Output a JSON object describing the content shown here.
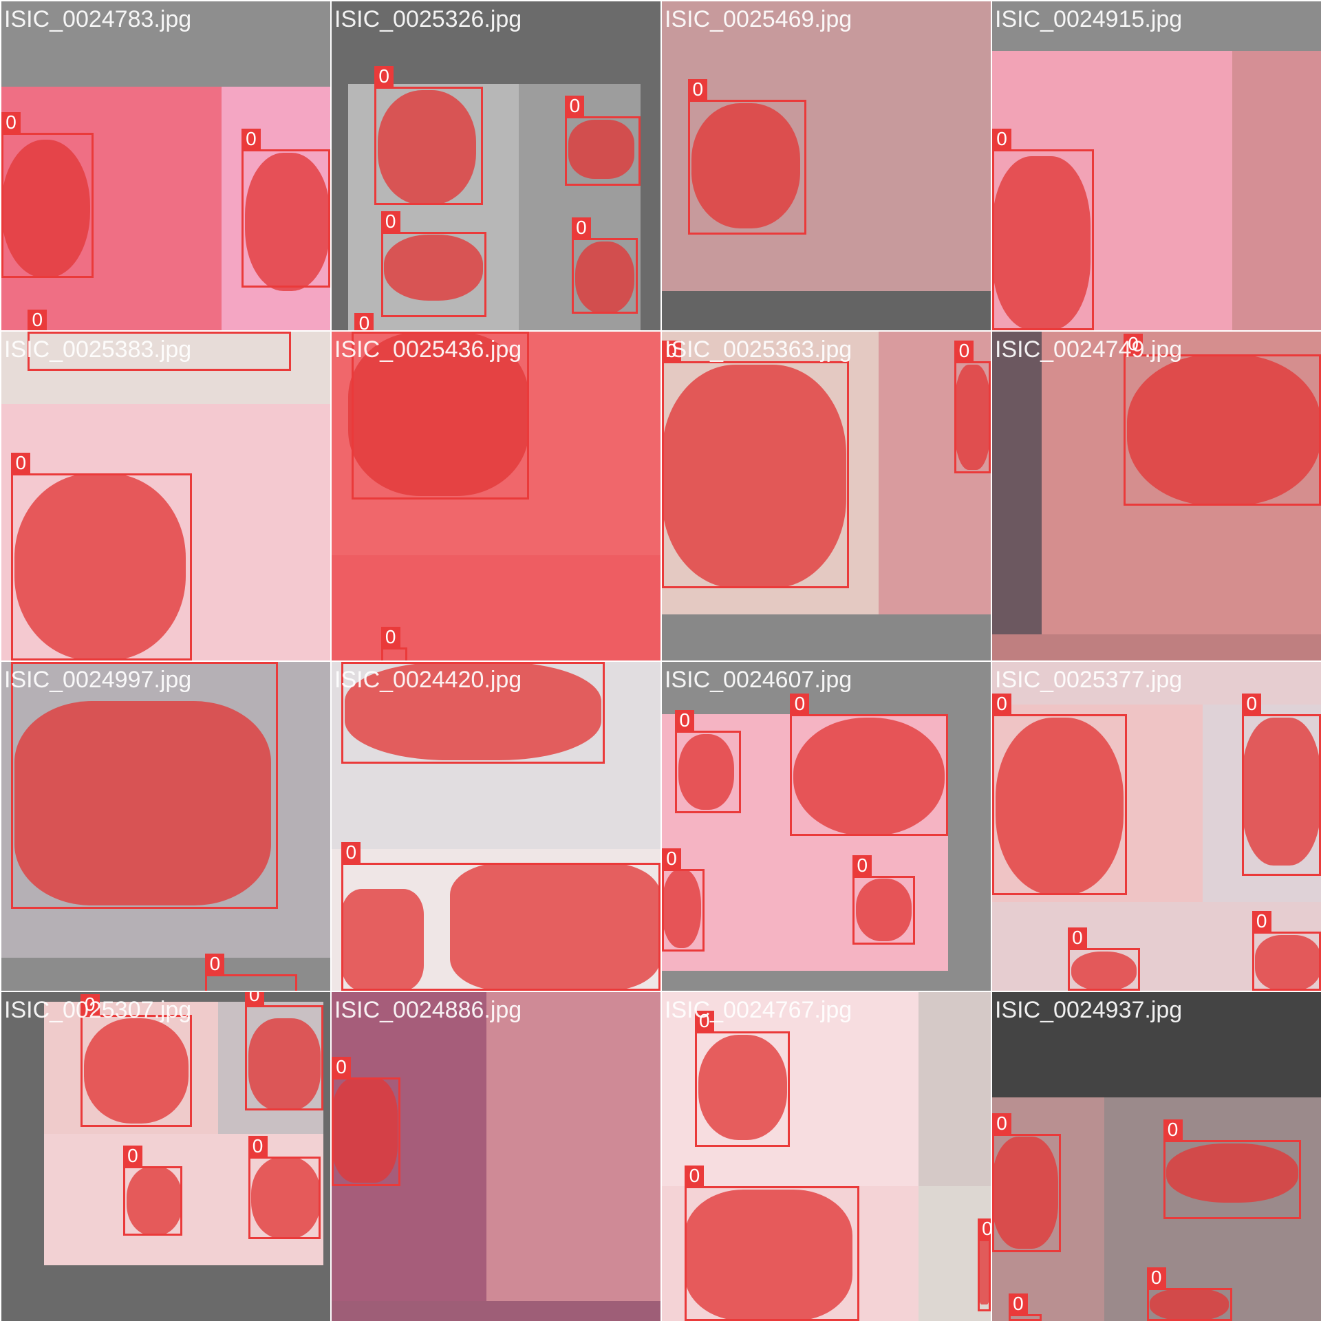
{
  "label_color": "#ea3a3a",
  "cells": [
    {
      "file_name": "ISIC_0024783.jpg",
      "background": "#8e8e8e",
      "regions": [
        {
          "l": 0,
          "t": 26,
          "w": 67,
          "h": 74,
          "c": "#ef6f84"
        },
        {
          "l": 67,
          "t": 26,
          "w": 33,
          "h": 74,
          "c": "#f4a6c3"
        }
      ],
      "lesions": [
        {
          "l": 0,
          "t": 42,
          "w": 27,
          "h": 42,
          "r": "48%"
        },
        {
          "l": 74,
          "t": 46,
          "w": 26,
          "h": 42,
          "r": "45%"
        }
      ],
      "detections": [
        {
          "l": 0,
          "t": 40,
          "w": 28,
          "h": 44,
          "class_id": "0"
        },
        {
          "l": 73,
          "t": 45,
          "w": 27,
          "h": 42,
          "class_id": "0"
        },
        {
          "l": 8,
          "t": 100,
          "w": 80,
          "h": 12,
          "class_id": "0"
        }
      ]
    },
    {
      "file_name": "ISIC_0025326.jpg",
      "background": "#6b6b6b",
      "regions": [
        {
          "l": 5,
          "t": 25,
          "w": 52,
          "h": 75,
          "c": "#b7b7b7"
        },
        {
          "l": 57,
          "t": 25,
          "w": 37,
          "h": 75,
          "c": "#9d9d9d"
        }
      ],
      "lesions": [
        {
          "l": 14,
          "t": 27,
          "w": 30,
          "h": 35,
          "r": "45%"
        },
        {
          "l": 72,
          "t": 36,
          "w": 20,
          "h": 18,
          "r": "40%"
        },
        {
          "l": 16,
          "t": 71,
          "w": 30,
          "h": 20,
          "r": "45%"
        },
        {
          "l": 74,
          "t": 73,
          "w": 18,
          "h": 22,
          "r": "45%"
        }
      ],
      "detections": [
        {
          "l": 13,
          "t": 26,
          "w": 33,
          "h": 36,
          "class_id": "0"
        },
        {
          "l": 71,
          "t": 35,
          "w": 23,
          "h": 21,
          "class_id": "0"
        },
        {
          "l": 15,
          "t": 70,
          "w": 32,
          "h": 26,
          "class_id": "0"
        },
        {
          "l": 73,
          "t": 72,
          "w": 20,
          "h": 23,
          "class_id": "0"
        },
        {
          "l": 7,
          "t": 101,
          "w": 30,
          "h": 6,
          "class_id": "0"
        }
      ]
    },
    {
      "file_name": "ISIC_0025469.jpg",
      "background": "#646464",
      "regions": [
        {
          "l": 0,
          "t": 0,
          "w": 100,
          "h": 88,
          "c": "#c79a9c"
        }
      ],
      "lesions": [
        {
          "l": 9,
          "t": 31,
          "w": 33,
          "h": 38,
          "r": "45%"
        }
      ],
      "detections": [
        {
          "l": 8,
          "t": 30,
          "w": 36,
          "h": 41,
          "class_id": "0"
        }
      ]
    },
    {
      "file_name": "ISIC_0024915.jpg",
      "background": "#8c8c8c",
      "regions": [
        {
          "l": 0,
          "t": 15,
          "w": 73,
          "h": 85,
          "c": "#f2a3b6"
        },
        {
          "l": 73,
          "t": 15,
          "w": 27,
          "h": 85,
          "c": "#d58f95"
        }
      ],
      "lesions": [
        {
          "l": 0,
          "t": 47,
          "w": 30,
          "h": 53,
          "r": "40%"
        }
      ],
      "detections": [
        {
          "l": 0,
          "t": 45,
          "w": 31,
          "h": 55,
          "class_id": "0"
        }
      ]
    },
    {
      "file_name": "ISIC_0025383.jpg",
      "background": "#e4cfd2",
      "regions": [
        {
          "l": 0,
          "t": 0,
          "w": 100,
          "h": 22,
          "c": "#e7dcd8"
        },
        {
          "l": 0,
          "t": 22,
          "w": 100,
          "h": 78,
          "c": "#f4c9d0"
        }
      ],
      "lesions": [
        {
          "l": 4,
          "t": 43,
          "w": 52,
          "h": 57,
          "r": "45%"
        }
      ],
      "detections": [
        {
          "l": 8,
          "t": 0,
          "w": 80,
          "h": 12,
          "class_id": "0"
        },
        {
          "l": 3,
          "t": 43,
          "w": 55,
          "h": 57,
          "class_id": "0"
        }
      ]
    },
    {
      "file_name": "ISIC_0025436.jpg",
      "background": "#ed5a5a",
      "regions": [
        {
          "l": 0,
          "t": 0,
          "w": 100,
          "h": 68,
          "c": "#f0676b"
        },
        {
          "l": 0,
          "t": 68,
          "w": 100,
          "h": 32,
          "c": "#ee5d62"
        }
      ],
      "lesions": [
        {
          "l": 5,
          "t": 0,
          "w": 55,
          "h": 50,
          "r": "40%"
        }
      ],
      "detections": [
        {
          "l": 6,
          "t": 0,
          "w": 54,
          "h": 51,
          "class_id": "0"
        },
        {
          "l": 15,
          "t": 96,
          "w": 8,
          "h": 6,
          "class_id": "0"
        }
      ]
    },
    {
      "file_name": "ISIC_0025363.jpg",
      "background": "#888888",
      "regions": [
        {
          "l": 0,
          "t": 0,
          "w": 66,
          "h": 86,
          "c": "#e4c9c2"
        },
        {
          "l": 66,
          "t": 0,
          "w": 34,
          "h": 86,
          "c": "#d99b9e"
        }
      ],
      "lesions": [
        {
          "l": 0,
          "t": 10,
          "w": 56,
          "h": 68,
          "r": "40%"
        },
        {
          "l": 89,
          "t": 10,
          "w": 11,
          "h": 32,
          "r": "40%"
        }
      ],
      "detections": [
        {
          "l": 0,
          "t": 9,
          "w": 57,
          "h": 69,
          "class_id": "0"
        },
        {
          "l": 89,
          "t": 9,
          "w": 11,
          "h": 34,
          "class_id": "0"
        }
      ]
    },
    {
      "file_name": "ISIC_0024749.jpg",
      "background": "#bf7f80",
      "regions": [
        {
          "l": 0,
          "t": 0,
          "w": 15,
          "h": 92,
          "c": "#6c5860"
        },
        {
          "l": 15,
          "t": 0,
          "w": 85,
          "h": 92,
          "c": "#d58e8e"
        }
      ],
      "lesions": [
        {
          "l": 41,
          "t": 7,
          "w": 59,
          "h": 46,
          "r": "45%"
        }
      ],
      "detections": [
        {
          "l": 40,
          "t": 7,
          "w": 60,
          "h": 46,
          "class_id": "0"
        }
      ]
    },
    {
      "file_name": "ISIC_0024997.jpg",
      "background": "#8c8c8c",
      "regions": [
        {
          "l": 0,
          "t": 0,
          "w": 100,
          "h": 90,
          "c": "#b5b0b5"
        }
      ],
      "lesions": [
        {
          "l": 4,
          "t": 12,
          "w": 78,
          "h": 62,
          "r": "30%"
        }
      ],
      "detections": [
        {
          "l": 3,
          "t": 0,
          "w": 81,
          "h": 75,
          "class_id": "0"
        },
        {
          "l": 62,
          "t": 95,
          "w": 28,
          "h": 6,
          "class_id": "0"
        }
      ]
    },
    {
      "file_name": "ISIC_0024420.jpg",
      "background": "#ddd9db",
      "regions": [
        {
          "l": 0,
          "t": 0,
          "w": 100,
          "h": 57,
          "c": "#e1dde0"
        },
        {
          "l": 0,
          "t": 57,
          "w": 100,
          "h": 43,
          "c": "#efe6e6"
        }
      ],
      "lesions": [
        {
          "l": 4,
          "t": 0,
          "w": 78,
          "h": 30,
          "r": "40%"
        },
        {
          "l": 3,
          "t": 69,
          "w": 25,
          "h": 31,
          "r": "25%"
        },
        {
          "l": 36,
          "t": 61,
          "w": 64,
          "h": 39,
          "r": "25%"
        }
      ],
      "detections": [
        {
          "l": 3,
          "t": 0,
          "w": 80,
          "h": 31,
          "class_id": "0"
        },
        {
          "l": 3,
          "t": 61,
          "w": 97,
          "h": 39,
          "class_id": "0"
        }
      ]
    },
    {
      "file_name": "ISIC_0024607.jpg",
      "background": "#8c8c8c",
      "regions": [
        {
          "l": 0,
          "t": 16,
          "w": 87,
          "h": 78,
          "c": "#f5b4c3"
        }
      ],
      "lesions": [
        {
          "l": 5,
          "t": 22,
          "w": 17,
          "h": 23,
          "r": "45%"
        },
        {
          "l": 40,
          "t": 17,
          "w": 46,
          "h": 36,
          "r": "48%"
        },
        {
          "l": 0,
          "t": 63,
          "w": 12,
          "h": 24,
          "r": "45%"
        },
        {
          "l": 59,
          "t": 66,
          "w": 17,
          "h": 19,
          "r": "45%"
        }
      ],
      "detections": [
        {
          "l": 4,
          "t": 21,
          "w": 20,
          "h": 25,
          "class_id": "0"
        },
        {
          "l": 39,
          "t": 16,
          "w": 48,
          "h": 37,
          "class_id": "0"
        },
        {
          "l": 0,
          "t": 63,
          "w": 13,
          "h": 25,
          "class_id": "0"
        },
        {
          "l": 58,
          "t": 65,
          "w": 19,
          "h": 21,
          "class_id": "0"
        }
      ]
    },
    {
      "file_name": "ISIC_0025377.jpg",
      "background": "#e6cdd0",
      "regions": [
        {
          "l": 0,
          "t": 13,
          "w": 64,
          "h": 60,
          "c": "#efc4c5"
        },
        {
          "l": 64,
          "t": 13,
          "w": 36,
          "h": 60,
          "c": "#dfd2d7"
        }
      ],
      "lesions": [
        {
          "l": 1,
          "t": 17,
          "w": 39,
          "h": 54,
          "r": "45%"
        },
        {
          "l": 76,
          "t": 17,
          "w": 24,
          "h": 45,
          "r": "40%"
        },
        {
          "l": 24,
          "t": 88,
          "w": 20,
          "h": 12,
          "r": "45%"
        },
        {
          "l": 80,
          "t": 83,
          "w": 20,
          "h": 17,
          "r": "40%"
        }
      ],
      "detections": [
        {
          "l": 0,
          "t": 16,
          "w": 41,
          "h": 55,
          "class_id": "0"
        },
        {
          "l": 76,
          "t": 16,
          "w": 24,
          "h": 49,
          "class_id": "0"
        },
        {
          "l": 23,
          "t": 87,
          "w": 22,
          "h": 13,
          "class_id": "0"
        },
        {
          "l": 79,
          "t": 82,
          "w": 21,
          "h": 18,
          "class_id": "0"
        }
      ]
    },
    {
      "file_name": "ISIC_0025307.jpg",
      "background": "#6a6a6a",
      "regions": [
        {
          "l": 13,
          "t": 3,
          "w": 53,
          "h": 40,
          "c": "#efcbcb"
        },
        {
          "l": 66,
          "t": 3,
          "w": 32,
          "h": 40,
          "c": "#c9c0c3"
        },
        {
          "l": 13,
          "t": 43,
          "w": 85,
          "h": 40,
          "c": "#f2d1d3"
        }
      ],
      "lesions": [
        {
          "l": 25,
          "t": 8,
          "w": 32,
          "h": 32,
          "r": "45%"
        },
        {
          "l": 75,
          "t": 8,
          "w": 22,
          "h": 28,
          "r": "40%"
        },
        {
          "l": 38,
          "t": 53,
          "w": 17,
          "h": 21,
          "r": "45%"
        },
        {
          "l": 76,
          "t": 50,
          "w": 21,
          "h": 25,
          "r": "45%"
        }
      ],
      "detections": [
        {
          "l": 24,
          "t": 7,
          "w": 34,
          "h": 34,
          "class_id": "0"
        },
        {
          "l": 74,
          "t": 4,
          "w": 24,
          "h": 32,
          "class_id": "0"
        },
        {
          "l": 37,
          "t": 53,
          "w": 18,
          "h": 21,
          "class_id": "0"
        },
        {
          "l": 75,
          "t": 50,
          "w": 22,
          "h": 25,
          "class_id": "0"
        }
      ]
    },
    {
      "file_name": "ISIC_0024886.jpg",
      "background": "#9e5e77",
      "regions": [
        {
          "l": 0,
          "t": 0,
          "w": 47,
          "h": 94,
          "c": "#a65d7a"
        },
        {
          "l": 47,
          "t": 0,
          "w": 53,
          "h": 94,
          "c": "#cf8a96"
        }
      ],
      "lesions": [
        {
          "l": 0,
          "t": 26,
          "w": 20,
          "h": 32,
          "r": "35%"
        }
      ],
      "detections": [
        {
          "l": 0,
          "t": 26,
          "w": 21,
          "h": 33,
          "class_id": "0"
        }
      ]
    },
    {
      "file_name": "ISIC_0024767.jpg",
      "background": "#f2dadd",
      "regions": [
        {
          "l": 0,
          "t": 0,
          "w": 78,
          "h": 59,
          "c": "#f7dde0"
        },
        {
          "l": 78,
          "t": 0,
          "w": 22,
          "h": 59,
          "c": "#d5c9c7"
        },
        {
          "l": 0,
          "t": 59,
          "w": 78,
          "h": 41,
          "c": "#f4d3d6"
        },
        {
          "l": 78,
          "t": 59,
          "w": 22,
          "h": 41,
          "c": "#ddd7d2"
        }
      ],
      "lesions": [
        {
          "l": 11,
          "t": 13,
          "w": 27,
          "h": 32,
          "r": "45%"
        },
        {
          "l": 7,
          "t": 60,
          "w": 51,
          "h": 40,
          "r": "35%"
        },
        {
          "l": 96,
          "t": 75,
          "w": 4,
          "h": 20,
          "r": "30%"
        }
      ],
      "detections": [
        {
          "l": 10,
          "t": 12,
          "w": 29,
          "h": 35,
          "class_id": "0"
        },
        {
          "l": 7,
          "t": 59,
          "w": 53,
          "h": 41,
          "class_id": "0"
        },
        {
          "l": 96,
          "t": 75,
          "w": 4,
          "h": 22,
          "class_id": "0"
        }
      ]
    },
    {
      "file_name": "ISIC_0024937.jpg",
      "background": "#444444",
      "regions": [
        {
          "l": 0,
          "t": 32,
          "w": 34,
          "h": 68,
          "c": "#b99091"
        },
        {
          "l": 34,
          "t": 32,
          "w": 66,
          "h": 68,
          "c": "#9b8a8b"
        }
      ],
      "lesions": [
        {
          "l": 0,
          "t": 44,
          "w": 20,
          "h": 34,
          "r": "40%"
        },
        {
          "l": 53,
          "t": 46,
          "w": 40,
          "h": 18,
          "r": "45%"
        },
        {
          "l": 48,
          "t": 90,
          "w": 24,
          "h": 10,
          "r": "45%"
        }
      ],
      "detections": [
        {
          "l": 0,
          "t": 43,
          "w": 21,
          "h": 36,
          "class_id": "0"
        },
        {
          "l": 52,
          "t": 45,
          "w": 42,
          "h": 24,
          "class_id": "0"
        },
        {
          "l": 47,
          "t": 90,
          "w": 26,
          "h": 10,
          "class_id": "0"
        },
        {
          "l": 5,
          "t": 98,
          "w": 10,
          "h": 2,
          "class_id": "0"
        }
      ]
    }
  ]
}
